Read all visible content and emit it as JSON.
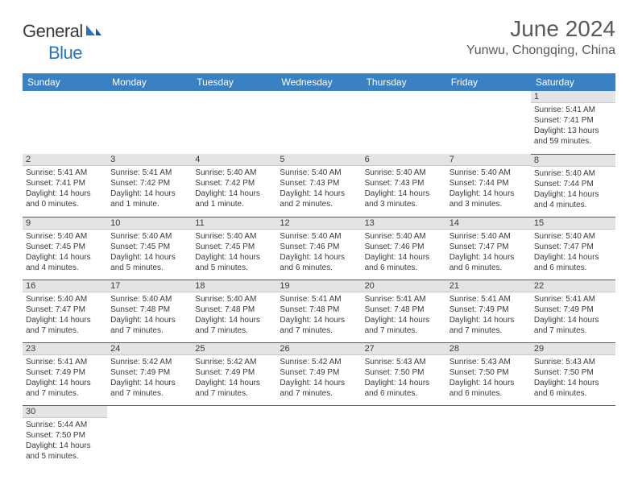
{
  "brand": {
    "part1": "General",
    "part2": "Blue"
  },
  "title": "June 2024",
  "location": "Yunwu, Chongqing, China",
  "weekdays": [
    "Sunday",
    "Monday",
    "Tuesday",
    "Wednesday",
    "Thursday",
    "Friday",
    "Saturday"
  ],
  "header_bg": "#3a81c4",
  "row_divider": "#2b5f9e",
  "daynum_bg": "#e4e4e4",
  "weeks": [
    [
      null,
      null,
      null,
      null,
      null,
      null,
      {
        "n": "1",
        "sr": "5:41 AM",
        "ss": "7:41 PM",
        "dl": "13 hours and 59 minutes."
      }
    ],
    [
      {
        "n": "2",
        "sr": "5:41 AM",
        "ss": "7:41 PM",
        "dl": "14 hours and 0 minutes."
      },
      {
        "n": "3",
        "sr": "5:41 AM",
        "ss": "7:42 PM",
        "dl": "14 hours and 1 minute."
      },
      {
        "n": "4",
        "sr": "5:40 AM",
        "ss": "7:42 PM",
        "dl": "14 hours and 1 minute."
      },
      {
        "n": "5",
        "sr": "5:40 AM",
        "ss": "7:43 PM",
        "dl": "14 hours and 2 minutes."
      },
      {
        "n": "6",
        "sr": "5:40 AM",
        "ss": "7:43 PM",
        "dl": "14 hours and 3 minutes."
      },
      {
        "n": "7",
        "sr": "5:40 AM",
        "ss": "7:44 PM",
        "dl": "14 hours and 3 minutes."
      },
      {
        "n": "8",
        "sr": "5:40 AM",
        "ss": "7:44 PM",
        "dl": "14 hours and 4 minutes."
      }
    ],
    [
      {
        "n": "9",
        "sr": "5:40 AM",
        "ss": "7:45 PM",
        "dl": "14 hours and 4 minutes."
      },
      {
        "n": "10",
        "sr": "5:40 AM",
        "ss": "7:45 PM",
        "dl": "14 hours and 5 minutes."
      },
      {
        "n": "11",
        "sr": "5:40 AM",
        "ss": "7:45 PM",
        "dl": "14 hours and 5 minutes."
      },
      {
        "n": "12",
        "sr": "5:40 AM",
        "ss": "7:46 PM",
        "dl": "14 hours and 6 minutes."
      },
      {
        "n": "13",
        "sr": "5:40 AM",
        "ss": "7:46 PM",
        "dl": "14 hours and 6 minutes."
      },
      {
        "n": "14",
        "sr": "5:40 AM",
        "ss": "7:47 PM",
        "dl": "14 hours and 6 minutes."
      },
      {
        "n": "15",
        "sr": "5:40 AM",
        "ss": "7:47 PM",
        "dl": "14 hours and 6 minutes."
      }
    ],
    [
      {
        "n": "16",
        "sr": "5:40 AM",
        "ss": "7:47 PM",
        "dl": "14 hours and 7 minutes."
      },
      {
        "n": "17",
        "sr": "5:40 AM",
        "ss": "7:48 PM",
        "dl": "14 hours and 7 minutes."
      },
      {
        "n": "18",
        "sr": "5:40 AM",
        "ss": "7:48 PM",
        "dl": "14 hours and 7 minutes."
      },
      {
        "n": "19",
        "sr": "5:41 AM",
        "ss": "7:48 PM",
        "dl": "14 hours and 7 minutes."
      },
      {
        "n": "20",
        "sr": "5:41 AM",
        "ss": "7:48 PM",
        "dl": "14 hours and 7 minutes."
      },
      {
        "n": "21",
        "sr": "5:41 AM",
        "ss": "7:49 PM",
        "dl": "14 hours and 7 minutes."
      },
      {
        "n": "22",
        "sr": "5:41 AM",
        "ss": "7:49 PM",
        "dl": "14 hours and 7 minutes."
      }
    ],
    [
      {
        "n": "23",
        "sr": "5:41 AM",
        "ss": "7:49 PM",
        "dl": "14 hours and 7 minutes."
      },
      {
        "n": "24",
        "sr": "5:42 AM",
        "ss": "7:49 PM",
        "dl": "14 hours and 7 minutes."
      },
      {
        "n": "25",
        "sr": "5:42 AM",
        "ss": "7:49 PM",
        "dl": "14 hours and 7 minutes."
      },
      {
        "n": "26",
        "sr": "5:42 AM",
        "ss": "7:49 PM",
        "dl": "14 hours and 7 minutes."
      },
      {
        "n": "27",
        "sr": "5:43 AM",
        "ss": "7:50 PM",
        "dl": "14 hours and 6 minutes."
      },
      {
        "n": "28",
        "sr": "5:43 AM",
        "ss": "7:50 PM",
        "dl": "14 hours and 6 minutes."
      },
      {
        "n": "29",
        "sr": "5:43 AM",
        "ss": "7:50 PM",
        "dl": "14 hours and 6 minutes."
      }
    ],
    [
      {
        "n": "30",
        "sr": "5:44 AM",
        "ss": "7:50 PM",
        "dl": "14 hours and 5 minutes."
      },
      null,
      null,
      null,
      null,
      null,
      null
    ]
  ],
  "labels": {
    "sunrise": "Sunrise:",
    "sunset": "Sunset:",
    "daylight": "Daylight:"
  }
}
